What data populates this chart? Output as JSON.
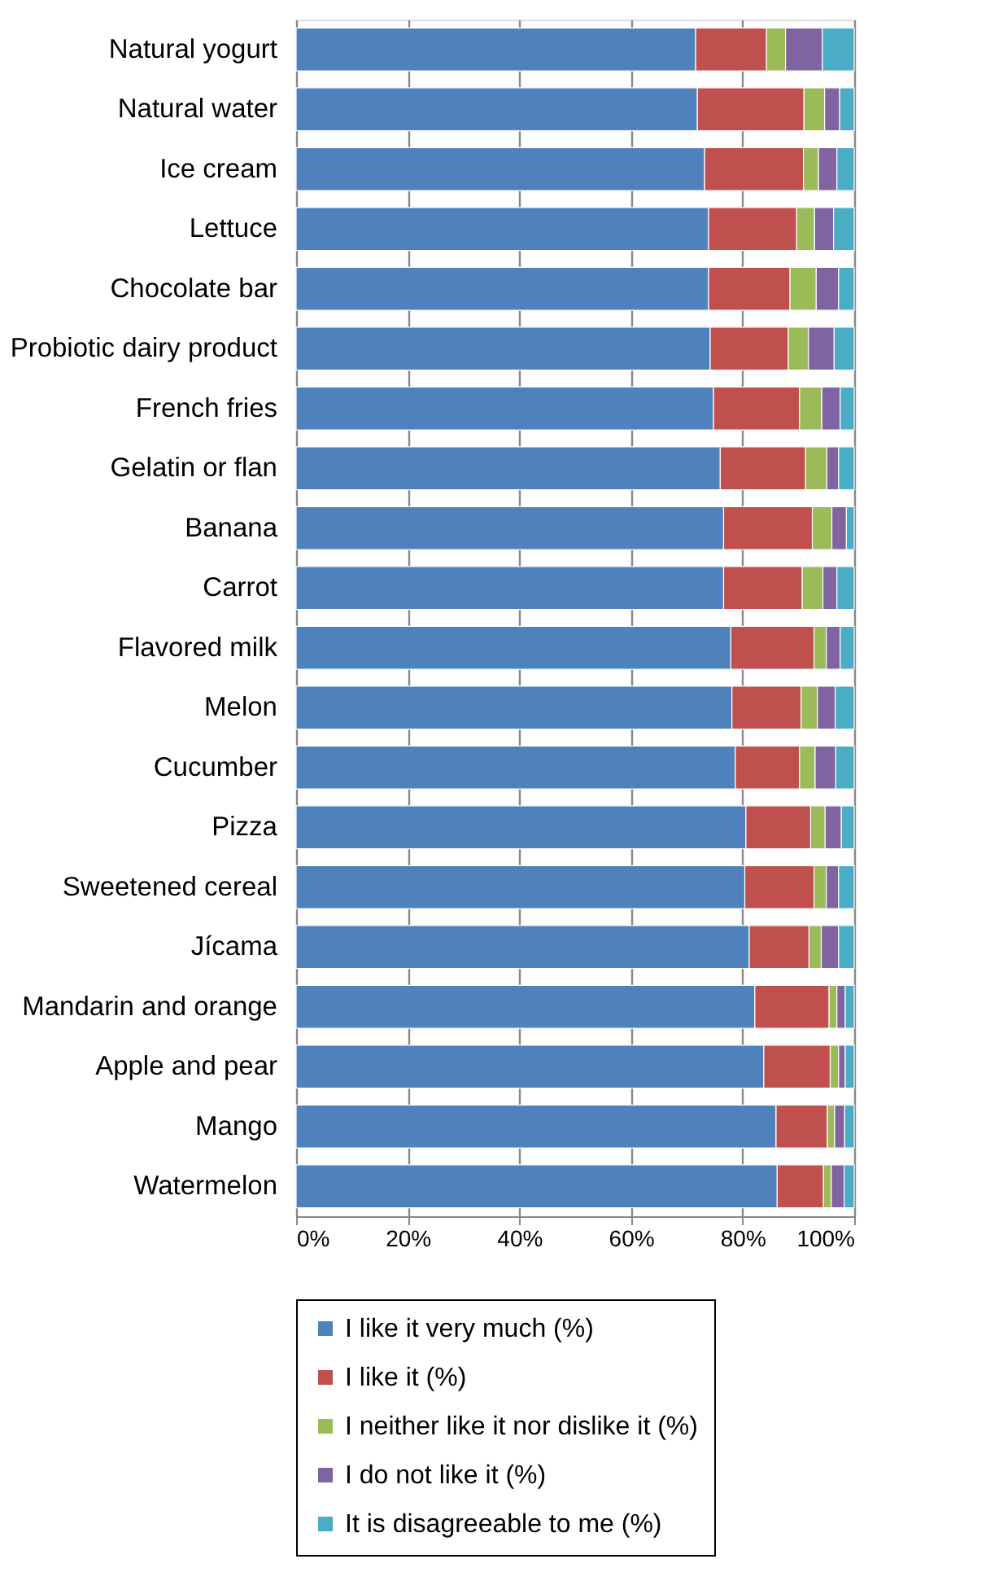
{
  "chart_data": {
    "type": "bar",
    "orientation": "horizontal",
    "stacked": true,
    "categories": [
      "Natural yogurt",
      "Natural water",
      "Ice cream",
      "Lettuce",
      "Chocolate bar",
      "Probiotic dairy product",
      "French fries",
      "Gelatin or flan",
      "Banana",
      "Carrot",
      "Flavored milk",
      "Melon",
      "Cucumber",
      "Pizza",
      "Sweetened cereal",
      "Jícama",
      "Mandarin and orange",
      "Apple and pear",
      "Mango",
      "Watermelon"
    ],
    "series": [
      {
        "name": "I like it very much (%)",
        "color": "#4f81bd",
        "values": [
          71.6,
          71.9,
          73.2,
          73.9,
          73.9,
          74.2,
          74.8,
          76.0,
          76.6,
          76.6,
          77.9,
          78.1,
          78.7,
          80.6,
          80.4,
          81.2,
          82.2,
          83.8,
          86.0,
          86.2
        ]
      },
      {
        "name": "I like it (%)",
        "color": "#c0504d",
        "values": [
          12.7,
          19.1,
          17.7,
          15.8,
          14.6,
          14.0,
          15.4,
          15.3,
          15.9,
          14.1,
          14.9,
          12.4,
          11.5,
          11.6,
          12.4,
          10.7,
          13.3,
          11.9,
          9.2,
          8.3
        ]
      },
      {
        "name": "I neither like it nor dislike it (%)",
        "color": "#9bbb59",
        "values": [
          3.4,
          3.7,
          2.7,
          3.2,
          4.7,
          3.6,
          4.0,
          3.8,
          3.5,
          3.7,
          2.2,
          2.9,
          2.8,
          2.6,
          2.2,
          2.2,
          1.4,
          1.5,
          1.3,
          1.4
        ]
      },
      {
        "name": "I do not like it (%)",
        "color": "#8064a2",
        "values": [
          6.6,
          2.7,
          3.3,
          3.4,
          4.0,
          4.6,
          3.3,
          2.1,
          2.6,
          2.5,
          2.5,
          3.2,
          3.7,
          2.9,
          2.2,
          3.1,
          1.5,
          1.2,
          1.8,
          2.3
        ]
      },
      {
        "name": "It is disagreeable to me (%)",
        "color": "#4bacc6",
        "values": [
          5.7,
          2.6,
          3.1,
          3.7,
          2.8,
          3.6,
          2.5,
          2.8,
          1.4,
          3.1,
          2.5,
          3.4,
          3.3,
          2.3,
          2.8,
          2.8,
          1.6,
          1.6,
          1.7,
          1.8
        ]
      }
    ],
    "xlim": [
      0,
      100
    ],
    "xticks": [
      {
        "value": 0,
        "label": "0%"
      },
      {
        "value": 20,
        "label": "20%"
      },
      {
        "value": 40,
        "label": "40%"
      },
      {
        "value": 60,
        "label": "60%"
      },
      {
        "value": 80,
        "label": "80%"
      },
      {
        "value": 100,
        "label": "100%"
      }
    ],
    "grid": "x",
    "legend": "bottom"
  }
}
